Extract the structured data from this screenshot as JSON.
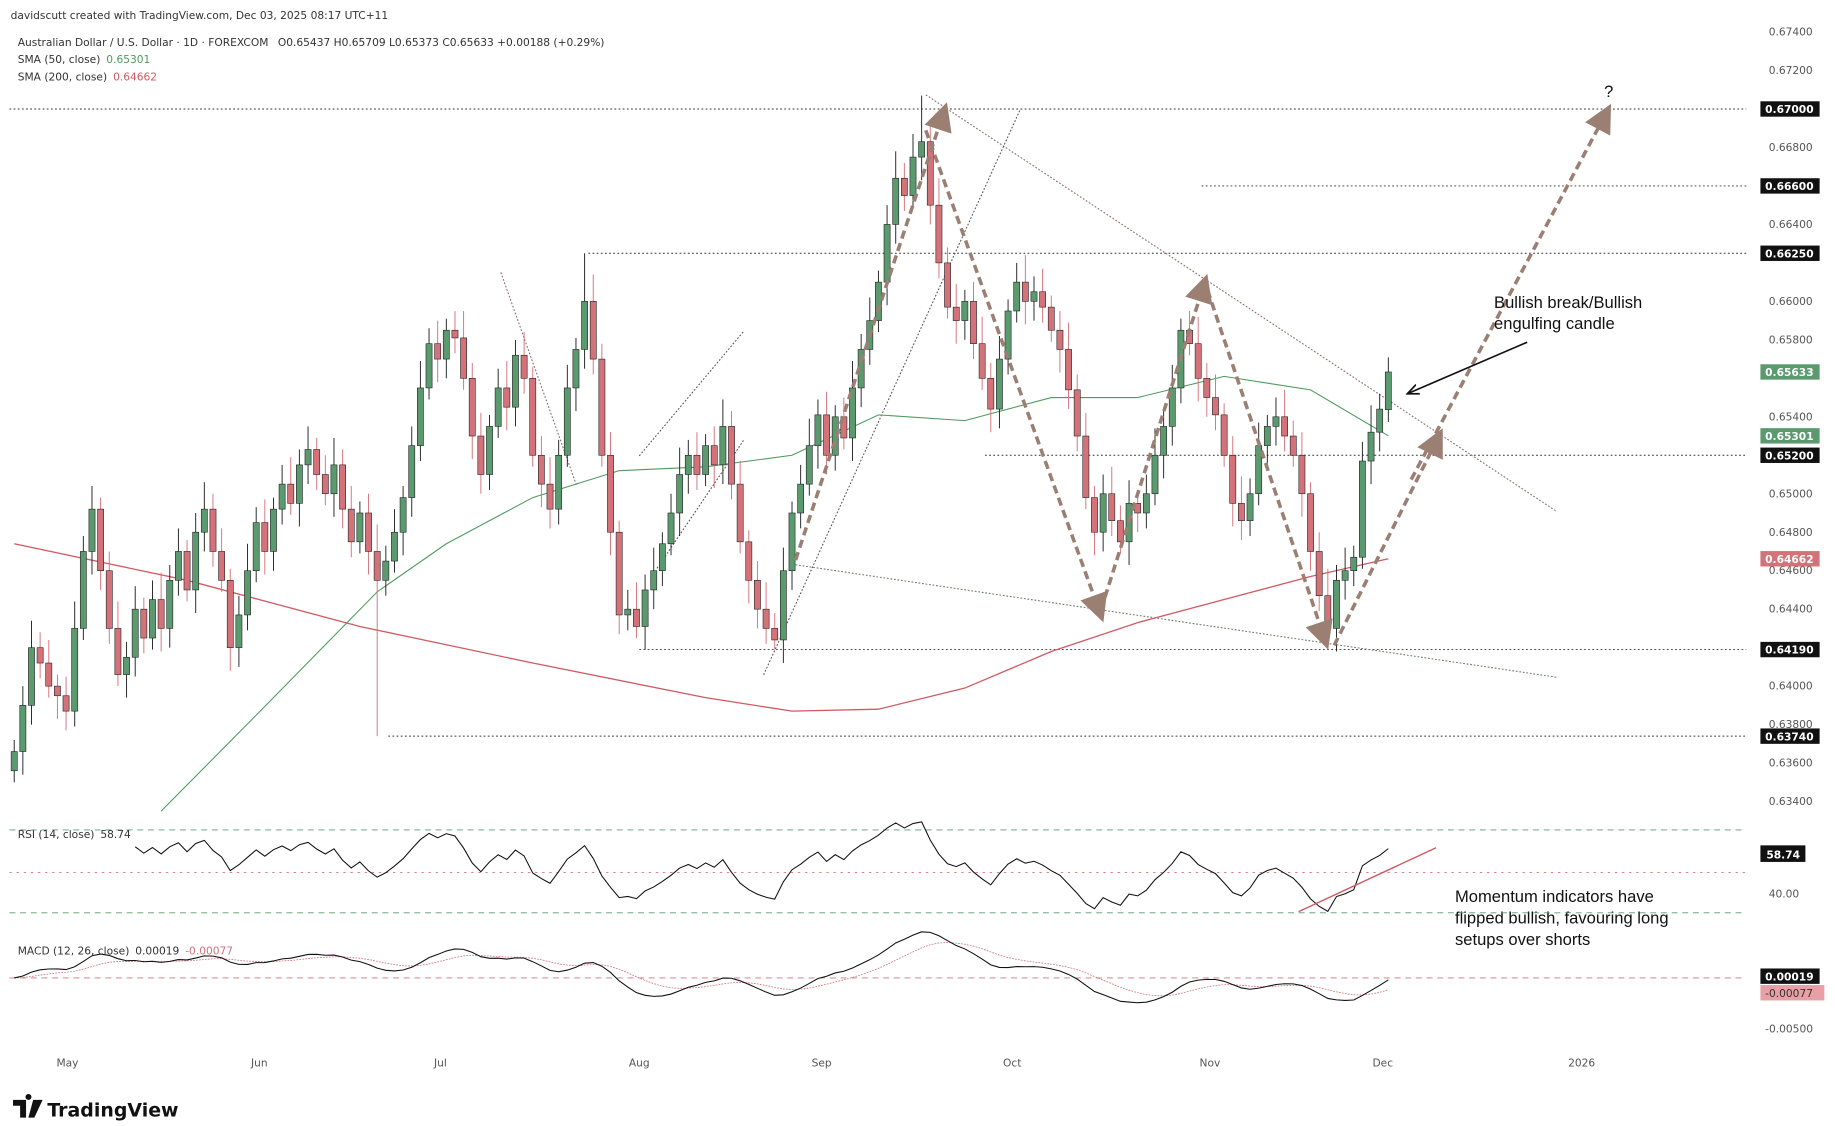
{
  "header": {
    "credit": "davidscutt created with TradingView.com, Dec 03, 2025 08:17 UTC+11",
    "symbol": "Australian Dollar / U.S. Dollar · 1D · FOREXCOM",
    "ohlc": "O0.65437  H0.65709  L0.65373  C0.65633  +0.00188 (+0.29%)",
    "sma50_label": "SMA (50, close)",
    "sma50_value": "0.65301",
    "sma200_label": "SMA (200, close)",
    "sma200_value": "0.64662"
  },
  "colors": {
    "up": "#5a9a6e",
    "down": "#d4727a",
    "sma50": "#4e9a5e",
    "sma200": "#d05a62",
    "arrow": "#9a7f72",
    "level_label_bg": "#111111"
  },
  "price_axis": {
    "ticks": [
      "0.67400",
      "0.67200",
      "0.66800",
      "0.66400",
      "0.66000",
      "0.65800",
      "0.65400",
      "0.65000",
      "0.64800",
      "0.64600",
      "0.64400",
      "0.64000",
      "0.63800",
      "0.63600",
      "0.63400"
    ],
    "current_price": "0.65633",
    "sma50_tag": "0.65301",
    "sma200_tag": "0.64662"
  },
  "levels": [
    {
      "label": "0.67000",
      "price": 0.67
    },
    {
      "label": "0.66600",
      "price": 0.666
    },
    {
      "label": "0.66250",
      "price": 0.6625
    },
    {
      "label": "0.65200",
      "price": 0.652
    },
    {
      "label": "0.64190",
      "price": 0.6419
    },
    {
      "label": "0.63740",
      "price": 0.6374
    }
  ],
  "time_axis": [
    "May",
    "Jun",
    "Jul",
    "Aug",
    "Sep",
    "Oct",
    "Nov",
    "Dec",
    "2026"
  ],
  "annotations": {
    "question": "?",
    "break_line1": "Bullish break/Bullish",
    "break_line2": "engulfing candle",
    "momentum_line1": "Momentum indicators have",
    "momentum_line2": "flipped bullish, favouring long",
    "momentum_line3": "setups over shorts"
  },
  "rsi": {
    "label": "RSI (14, close)",
    "value": "58.74",
    "axis_label": "40.00"
  },
  "macd": {
    "label": "MACD (12, 26, close)",
    "value": "0.00019",
    "signal": "-0.00077",
    "axis_label": "-0.00500"
  },
  "logo": "TradingView",
  "chart_data": {
    "type": "candlestick",
    "title": "Australian Dollar / U.S. Dollar · 1D · FOREXCOM",
    "ylim": [
      0.632,
      0.675
    ],
    "closes": [
      0.6366,
      0.639,
      0.642,
      0.6412,
      0.64,
      0.6395,
      0.6387,
      0.643,
      0.647,
      0.6492,
      0.646,
      0.643,
      0.6406,
      0.6415,
      0.644,
      0.6425,
      0.6445,
      0.643,
      0.6455,
      0.647,
      0.645,
      0.648,
      0.6492,
      0.647,
      0.6455,
      0.642,
      0.6437,
      0.646,
      0.6485,
      0.647,
      0.6492,
      0.6505,
      0.6495,
      0.6515,
      0.6523,
      0.651,
      0.65,
      0.6515,
      0.6492,
      0.6475,
      0.649,
      0.647,
      0.6455,
      0.6465,
      0.648,
      0.6498,
      0.6525,
      0.6555,
      0.6578,
      0.657,
      0.6585,
      0.6581,
      0.656,
      0.653,
      0.651,
      0.6535,
      0.6555,
      0.6545,
      0.6572,
      0.656,
      0.652,
      0.6505,
      0.6492,
      0.652,
      0.6555,
      0.6575,
      0.66,
      0.657,
      0.652,
      0.648,
      0.6437,
      0.644,
      0.6431,
      0.645,
      0.646,
      0.6474,
      0.649,
      0.651,
      0.652,
      0.651,
      0.6525,
      0.6515,
      0.6535,
      0.6505,
      0.6475,
      0.6455,
      0.644,
      0.643,
      0.6424,
      0.646,
      0.649,
      0.6505,
      0.6525,
      0.6541,
      0.652,
      0.654,
      0.6529,
      0.6555,
      0.6575,
      0.659,
      0.661,
      0.664,
      0.6664,
      0.6655,
      0.6675,
      0.6683,
      0.665,
      0.662,
      0.6597,
      0.659,
      0.66,
      0.6578,
      0.656,
      0.6544,
      0.657,
      0.6595,
      0.661,
      0.66,
      0.6605,
      0.6597,
      0.6585,
      0.6575,
      0.6554,
      0.653,
      0.6498,
      0.648,
      0.65,
      0.6486,
      0.6475,
      0.6495,
      0.649,
      0.65,
      0.652,
      0.6535,
      0.6555,
      0.6585,
      0.6578,
      0.656,
      0.655,
      0.6541,
      0.652,
      0.6495,
      0.6486,
      0.65,
      0.6525,
      0.6535,
      0.654,
      0.653,
      0.652,
      0.65,
      0.647,
      0.6447,
      0.643,
      0.6455,
      0.646,
      0.6467,
      0.6517,
      0.6532,
      0.6544,
      0.65633
    ],
    "last_candle": {
      "open": 0.65437,
      "high": 0.65709,
      "low": 0.65373,
      "close": 0.65633
    },
    "notable_wicks": [
      {
        "index": 42,
        "low": 0.6374
      },
      {
        "index": 66,
        "high": 0.6625
      },
      {
        "index": 88,
        "low": 0.6419
      },
      {
        "index": 105,
        "high": 0.6707
      },
      {
        "index": 152,
        "low": 0.6419
      }
    ],
    "sma50_points": [
      [
        17,
        0.6335
      ],
      [
        30,
        0.6394
      ],
      [
        42,
        0.6449
      ],
      [
        50,
        0.6474
      ],
      [
        60,
        0.6498
      ],
      [
        70,
        0.6512
      ],
      [
        80,
        0.6514
      ],
      [
        90,
        0.652
      ],
      [
        100,
        0.6541
      ],
      [
        110,
        0.6538
      ],
      [
        120,
        0.655
      ],
      [
        130,
        0.655
      ],
      [
        140,
        0.6561
      ],
      [
        150,
        0.6554
      ],
      [
        159,
        0.65301
      ]
    ],
    "sma200_points": [
      [
        0,
        0.6474
      ],
      [
        20,
        0.6455
      ],
      [
        40,
        0.6431
      ],
      [
        60,
        0.6412
      ],
      [
        80,
        0.6394
      ],
      [
        90,
        0.6387
      ],
      [
        100,
        0.6388
      ],
      [
        110,
        0.6399
      ],
      [
        120,
        0.6418
      ],
      [
        130,
        0.6433
      ],
      [
        140,
        0.6445
      ],
      [
        150,
        0.6457
      ],
      [
        159,
        0.64662
      ]
    ]
  }
}
